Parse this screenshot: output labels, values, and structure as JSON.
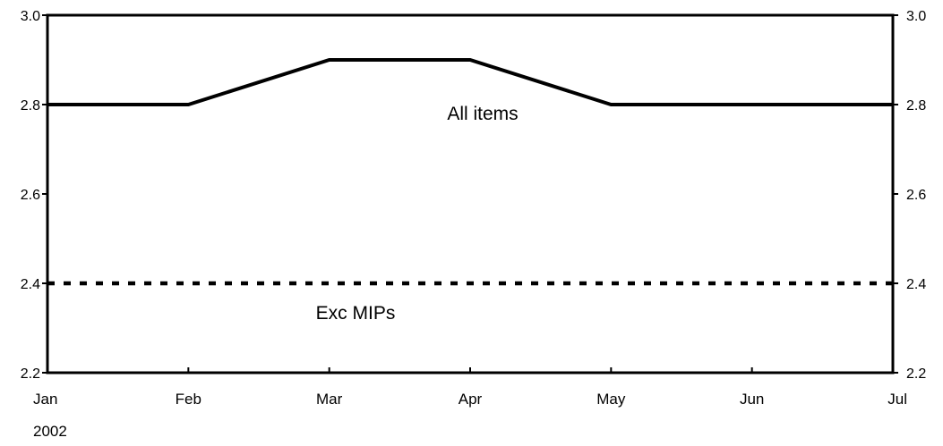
{
  "chart_data": {
    "type": "line",
    "categories": [
      "Jan",
      "Feb",
      "Mar",
      "Apr",
      "May",
      "Jun",
      "Jul"
    ],
    "year_label": "2002",
    "ylim": [
      2.2,
      3.0
    ],
    "yticks": [
      "2.2",
      "2.4",
      "2.6",
      "2.8",
      "3.0"
    ],
    "grid": false,
    "series": [
      {
        "name": "All items",
        "style": "solid",
        "color": "#000000",
        "values": [
          2.8,
          2.8,
          2.9,
          2.9,
          2.8,
          2.8,
          2.8
        ]
      },
      {
        "name": "Exc MIPs",
        "style": "dotted",
        "color": "#000000",
        "values": [
          2.4,
          2.4,
          2.4,
          2.4,
          2.4,
          2.4,
          2.4
        ]
      }
    ]
  }
}
